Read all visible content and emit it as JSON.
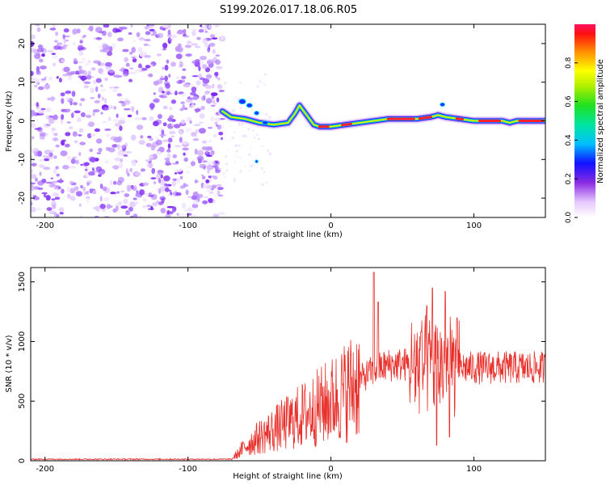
{
  "figure": {
    "title": "S199.2026.017.18.06.R05"
  },
  "chart_data": [
    {
      "id": "spectrogram",
      "type": "heatmap",
      "xlabel": "Height of straight line (km)",
      "ylabel": "Frequency (Hz)",
      "xlim": [
        -210,
        150
      ],
      "ylim": [
        -25,
        25
      ],
      "xticks": [
        -200,
        -100,
        0,
        100
      ],
      "yticks": [
        -20,
        -10,
        0,
        10,
        20
      ],
      "noise_region_x": [
        -210,
        -76
      ],
      "ridge": {
        "x": [
          -76,
          -70,
          -60,
          -50,
          -40,
          -30,
          -25,
          -22,
          -18,
          -12,
          -8,
          -5,
          0,
          10,
          20,
          30,
          40,
          50,
          60,
          70,
          75,
          80,
          90,
          100,
          110,
          120,
          125,
          130,
          140,
          150
        ],
        "y": [
          2.5,
          1.0,
          0.5,
          -0.5,
          -1.0,
          -0.5,
          2.0,
          4.0,
          2.0,
          -1.0,
          -1.5,
          -1.5,
          -1.5,
          -1.0,
          -0.5,
          0.0,
          0.5,
          0.5,
          0.5,
          1.0,
          1.5,
          1.0,
          0.5,
          0.0,
          0.0,
          0.0,
          -0.5,
          0.0,
          0.0,
          0.0
        ]
      },
      "colorbar": {
        "label": "Normalized spectral amplitude",
        "range": [
          0,
          1
        ],
        "ticks": [
          0.0,
          0.2,
          0.4,
          0.6,
          0.8
        ],
        "tick_labels": [
          "0.0",
          "0.2",
          "0.4",
          "0.6",
          "0.8"
        ]
      }
    },
    {
      "id": "snr",
      "type": "line",
      "color": "#e8312c",
      "xlabel": "Height of straight line (km)",
      "ylabel": "SNR (10 * v/v)",
      "xlim": [
        -210,
        150
      ],
      "ylim": [
        0,
        1620
      ],
      "xticks": [
        -200,
        -100,
        0,
        100
      ],
      "yticks": [
        0,
        500,
        1000,
        1500
      ],
      "envelope": {
        "x": [
          -210,
          -70,
          -65,
          -60,
          -50,
          -40,
          -30,
          -20,
          -10,
          0,
          10,
          20,
          30,
          40,
          50,
          60,
          70,
          80,
          90,
          100,
          120,
          150
        ],
        "y": [
          10,
          10,
          60,
          120,
          200,
          260,
          320,
          380,
          440,
          500,
          580,
          680,
          760,
          800,
          810,
          800,
          790,
          790,
          780,
          780,
          780,
          780
        ]
      },
      "peaks": [
        {
          "x": 30,
          "y": 1580
        },
        {
          "x": 33,
          "y": 1330
        },
        {
          "x": 63,
          "y": 1080
        },
        {
          "x": 67,
          "y": 1300
        },
        {
          "x": 71,
          "y": 1450
        },
        {
          "x": 74,
          "y": 130
        },
        {
          "x": 80,
          "y": 1420
        },
        {
          "x": 83,
          "y": 200
        }
      ]
    }
  ]
}
